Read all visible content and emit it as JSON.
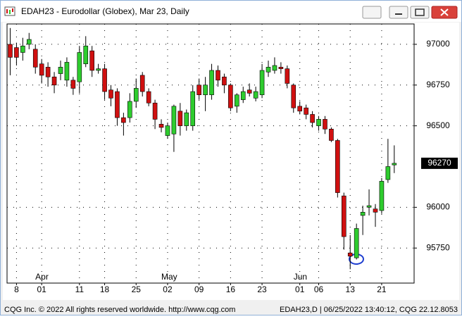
{
  "window": {
    "title": "EDAH23 - Eurodollar (Globex), Mar 23, Daily"
  },
  "chart_data": {
    "type": "candlestick",
    "categories": [
      null,
      "8",
      null,
      null,
      null,
      "01",
      null,
      null,
      null,
      null,
      null,
      "11",
      null,
      null,
      null,
      "18",
      null,
      null,
      null,
      null,
      "25",
      null,
      null,
      null,
      null,
      "02",
      null,
      null,
      null,
      null,
      "09",
      null,
      null,
      null,
      null,
      "16",
      null,
      null,
      null,
      null,
      "23",
      null,
      null,
      null,
      null,
      null,
      "01",
      null,
      null,
      "06",
      null,
      null,
      null,
      null,
      "13",
      null,
      null,
      null,
      null,
      "21",
      null,
      null
    ],
    "months": [
      null,
      null,
      null,
      null,
      null,
      "Apr",
      null,
      null,
      null,
      null,
      null,
      null,
      null,
      null,
      null,
      null,
      null,
      null,
      null,
      null,
      null,
      null,
      null,
      null,
      null,
      "May",
      null,
      null,
      null,
      null,
      null,
      null,
      null,
      null,
      null,
      null,
      null,
      null,
      null,
      null,
      null,
      null,
      null,
      null,
      null,
      null,
      "Jun",
      null,
      null,
      null,
      null,
      null,
      null,
      null,
      null,
      null,
      null,
      null,
      null,
      null,
      null,
      null
    ],
    "open": [
      97000,
      96980,
      96950,
      97000,
      96970,
      96880,
      96860,
      96800,
      96820,
      96780,
      96780,
      96770,
      96880,
      96960,
      96840,
      96850,
      96720,
      96710,
      96550,
      96550,
      96650,
      96810,
      96710,
      96640,
      96510,
      96440,
      96450,
      96590,
      96500,
      96500,
      96750,
      96690,
      96690,
      96840,
      96800,
      96750,
      96620,
      96660,
      96720,
      96670,
      96690,
      96830,
      96840,
      96860,
      96850,
      96750,
      96620,
      96610,
      96570,
      96500,
      96540,
      96480,
      96410,
      96070,
      95720,
      95690,
      95950,
      96000,
      95990,
      95980,
      96170,
      96260
    ],
    "high": [
      97100,
      97010,
      97040,
      97070,
      97000,
      96910,
      96890,
      96830,
      96900,
      96920,
      96800,
      96990,
      97050,
      96990,
      96880,
      96880,
      96750,
      96730,
      96580,
      96700,
      96790,
      96830,
      96730,
      96660,
      96540,
      96520,
      96630,
      96640,
      96600,
      96750,
      96790,
      96800,
      96880,
      96870,
      96820,
      96760,
      96700,
      96740,
      96760,
      96740,
      96880,
      96900,
      96920,
      96890,
      96870,
      96760,
      96650,
      96630,
      96590,
      96560,
      96560,
      96490,
      96420,
      96090,
      95830,
      95900,
      96010,
      96110,
      96020,
      96180,
      96420,
      96380
    ],
    "low": [
      96810,
      96870,
      96900,
      96970,
      96820,
      96760,
      96740,
      96700,
      96780,
      96740,
      96690,
      96700,
      96860,
      96800,
      96820,
      96660,
      96620,
      96500,
      96440,
      96520,
      96610,
      96680,
      96620,
      96480,
      96460,
      96420,
      96340,
      96440,
      96470,
      96470,
      96660,
      96590,
      96660,
      96740,
      96700,
      96590,
      96580,
      96640,
      96680,
      96650,
      96670,
      96800,
      96820,
      96820,
      96730,
      96580,
      96570,
      96540,
      96490,
      96470,
      96450,
      96400,
      96060,
      95740,
      95620,
      95680,
      95830,
      95950,
      95880,
      95960,
      96150,
      96210
    ],
    "close": [
      96920,
      96920,
      96990,
      97030,
      96860,
      96810,
      96800,
      96750,
      96860,
      96890,
      96730,
      96950,
      96990,
      96840,
      96850,
      96710,
      96670,
      96550,
      96520,
      96650,
      96730,
      96710,
      96640,
      96540,
      96490,
      96500,
      96620,
      96500,
      96580,
      96710,
      96690,
      96750,
      96840,
      96780,
      96750,
      96610,
      96690,
      96710,
      96700,
      96710,
      96840,
      96860,
      96870,
      96850,
      96760,
      96610,
      96590,
      96570,
      96520,
      96540,
      96480,
      96410,
      96090,
      95820,
      95700,
      95870,
      95970,
      96010,
      95970,
      96160,
      96250,
      96270
    ],
    "up_color": "#2ecc2e",
    "down_color": "#d01010",
    "ylim": [
      95535,
      97125
    ],
    "yticks": [
      95750,
      96000,
      96500,
      96750,
      97000
    ],
    "last": 96270,
    "grid": true
  },
  "footer": {
    "left": "CQG Inc. © 2022 All rights reserved worldwide. http://www.cqg.com",
    "right": "EDAH23,D | 06/25/2022 13:40:12, CQG 22.12.8053"
  }
}
